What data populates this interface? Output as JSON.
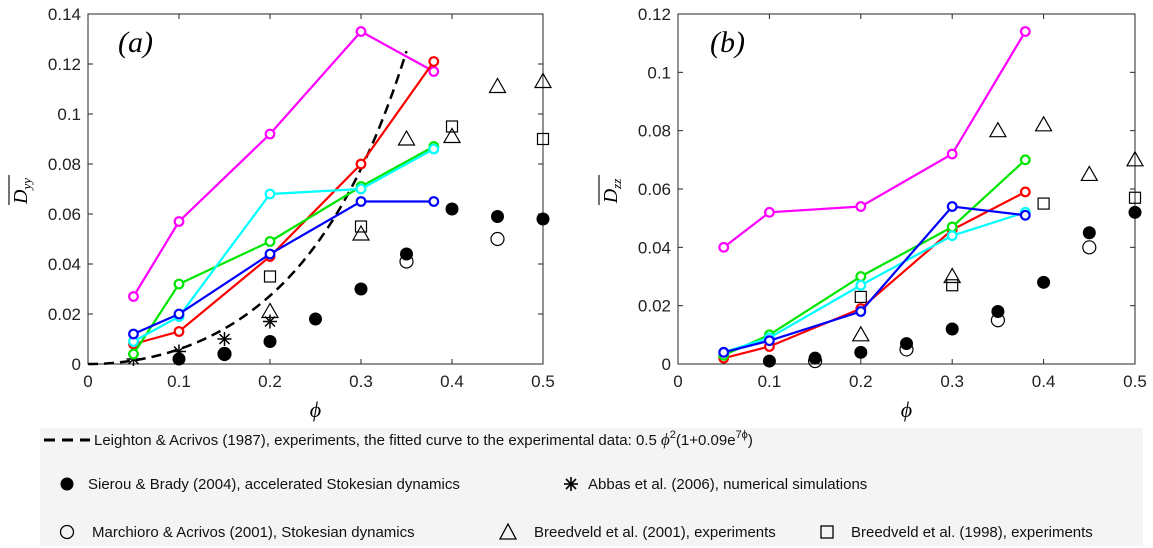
{
  "legend": {
    "dashed_label": "Leighton & Acrivos (1987), experiments, the fitted curve to the experimental data: 0.5 ϕ²(1+0.09e⁷ᵠ)",
    "dashed_label_main": "Leighton & Acrivos (1987), experiments, the fitted curve to the experimental data: 0.5 ",
    "dashed_label_formula": "(1+0.09e",
    "phi": "ϕ",
    "two": "2",
    "seven_phi": "7ϕ",
    "close_paren": ")",
    "filled_circle_label": "Sierou & Brady (2004), accelerated Stokesian dynamics",
    "asterisk_label": "Abbas et al. (2006), numerical simulations",
    "open_circle_label": "Marchioro & Acrivos (2001), Stokesian dynamics",
    "triangle_label": "Breedveld et al. (2001), experiments",
    "square_label": "Breedveld et al. (1998), experiments"
  },
  "colors": {
    "magenta": "#ff00ff",
    "red": "#ff0000",
    "green": "#00e600",
    "cyan": "#00ffff",
    "blue": "#0000ff",
    "black": "#000000"
  },
  "chart_data": [
    {
      "type": "line",
      "panel_label": "(a)",
      "ylabel": "D̅yy",
      "ylabel_main": "D",
      "ylabel_sub": "yy",
      "xlabel": "ϕ",
      "xlim": [
        0,
        0.5
      ],
      "ylim": [
        0,
        0.14
      ],
      "xticks": [
        0,
        0.1,
        0.2,
        0.3,
        0.4,
        0.5
      ],
      "xtick_labels": [
        "0",
        "0.1",
        "0.2",
        "0.3",
        "0.4",
        "0.5"
      ],
      "yticks": [
        0,
        0.02,
        0.04,
        0.06,
        0.08,
        0.1,
        0.12,
        0.14
      ],
      "ytick_labels": [
        "0",
        "0.02",
        "0.04",
        "0.06",
        "0.08",
        "0.1",
        "0.12",
        "0.14"
      ],
      "grid": false,
      "lines": [
        {
          "color": "magenta",
          "x": [
            0.05,
            0.1,
            0.2,
            0.3,
            0.38
          ],
          "y": [
            0.027,
            0.057,
            0.092,
            0.133,
            0.117
          ]
        },
        {
          "color": "red",
          "x": [
            0.05,
            0.1,
            0.2,
            0.3,
            0.38
          ],
          "y": [
            0.008,
            0.013,
            0.043,
            0.08,
            0.121
          ]
        },
        {
          "color": "green",
          "x": [
            0.05,
            0.1,
            0.2,
            0.3,
            0.38
          ],
          "y": [
            0.004,
            0.032,
            0.049,
            0.071,
            0.087
          ]
        },
        {
          "color": "cyan",
          "x": [
            0.05,
            0.1,
            0.2,
            0.3,
            0.38
          ],
          "y": [
            0.009,
            0.019,
            0.068,
            0.07,
            0.086
          ]
        },
        {
          "color": "blue",
          "x": [
            0.05,
            0.1,
            0.2,
            0.3,
            0.38
          ],
          "y": [
            0.012,
            0.02,
            0.044,
            0.065,
            0.065
          ]
        }
      ],
      "dashed_curve": {
        "formula": "0.5*phi^2*(1+0.09*exp(7*phi))",
        "x_range": [
          0,
          0.35
        ]
      },
      "filled_circles": {
        "x": [
          0.1,
          0.15,
          0.2,
          0.25,
          0.3,
          0.35,
          0.4,
          0.45,
          0.5
        ],
        "y": [
          0.002,
          0.004,
          0.009,
          0.018,
          0.03,
          0.044,
          0.062,
          0.059,
          0.058
        ]
      },
      "open_circles": {
        "x": [
          0.15,
          0.35,
          0.45
        ],
        "y": [
          0.004,
          0.041,
          0.05
        ]
      },
      "asterisks": {
        "x": [
          0.05,
          0.1,
          0.15,
          0.2
        ],
        "y": [
          0.002,
          0.005,
          0.01,
          0.017
        ]
      },
      "triangles": {
        "x": [
          0.2,
          0.3,
          0.35,
          0.4,
          0.45,
          0.5
        ],
        "y": [
          0.021,
          0.052,
          0.09,
          0.091,
          0.111,
          0.113
        ]
      },
      "squares": {
        "x": [
          0.2,
          0.3,
          0.4,
          0.5
        ],
        "y": [
          0.035,
          0.055,
          0.095,
          0.09
        ]
      }
    },
    {
      "type": "line",
      "panel_label": "(b)",
      "ylabel": "D̅zz",
      "ylabel_main": "D",
      "ylabel_sub": "zz",
      "xlabel": "ϕ",
      "xlim": [
        0,
        0.5
      ],
      "ylim": [
        0,
        0.12
      ],
      "xticks": [
        0,
        0.1,
        0.2,
        0.3,
        0.4,
        0.5
      ],
      "xtick_labels": [
        "0",
        "0.1",
        "0.2",
        "0.3",
        "0.4",
        "0.5"
      ],
      "yticks": [
        0,
        0.02,
        0.04,
        0.06,
        0.08,
        0.1,
        0.12
      ],
      "ytick_labels": [
        "0",
        "0.02",
        "0.04",
        "0.06",
        "0.08",
        "0.1",
        "0.12"
      ],
      "grid": false,
      "lines": [
        {
          "color": "magenta",
          "x": [
            0.05,
            0.1,
            0.2,
            0.3,
            0.38
          ],
          "y": [
            0.04,
            0.052,
            0.054,
            0.072,
            0.114
          ]
        },
        {
          "color": "red",
          "x": [
            0.05,
            0.1,
            0.2,
            0.3,
            0.38
          ],
          "y": [
            0.002,
            0.006,
            0.019,
            0.046,
            0.059
          ]
        },
        {
          "color": "green",
          "x": [
            0.05,
            0.1,
            0.2,
            0.3,
            0.38
          ],
          "y": [
            0.003,
            0.01,
            0.03,
            0.047,
            0.07
          ]
        },
        {
          "color": "cyan",
          "x": [
            0.05,
            0.1,
            0.2,
            0.3,
            0.38
          ],
          "y": [
            0.004,
            0.009,
            0.027,
            0.044,
            0.052
          ]
        },
        {
          "color": "blue",
          "x": [
            0.05,
            0.1,
            0.2,
            0.3,
            0.38
          ],
          "y": [
            0.004,
            0.008,
            0.018,
            0.054,
            0.051
          ]
        }
      ],
      "filled_circles": {
        "x": [
          0.1,
          0.15,
          0.2,
          0.25,
          0.3,
          0.35,
          0.4,
          0.45,
          0.5
        ],
        "y": [
          0.001,
          0.002,
          0.004,
          0.007,
          0.012,
          0.018,
          0.028,
          0.045,
          0.052
        ]
      },
      "open_circles": {
        "x": [
          0.15,
          0.25,
          0.35,
          0.45
        ],
        "y": [
          0.001,
          0.005,
          0.015,
          0.04
        ]
      },
      "triangles": {
        "x": [
          0.2,
          0.3,
          0.35,
          0.4,
          0.45,
          0.5
        ],
        "y": [
          0.01,
          0.03,
          0.08,
          0.082,
          0.065,
          0.07
        ]
      },
      "squares": {
        "x": [
          0.2,
          0.3,
          0.4,
          0.5
        ],
        "y": [
          0.023,
          0.027,
          0.055,
          0.057
        ]
      }
    }
  ]
}
